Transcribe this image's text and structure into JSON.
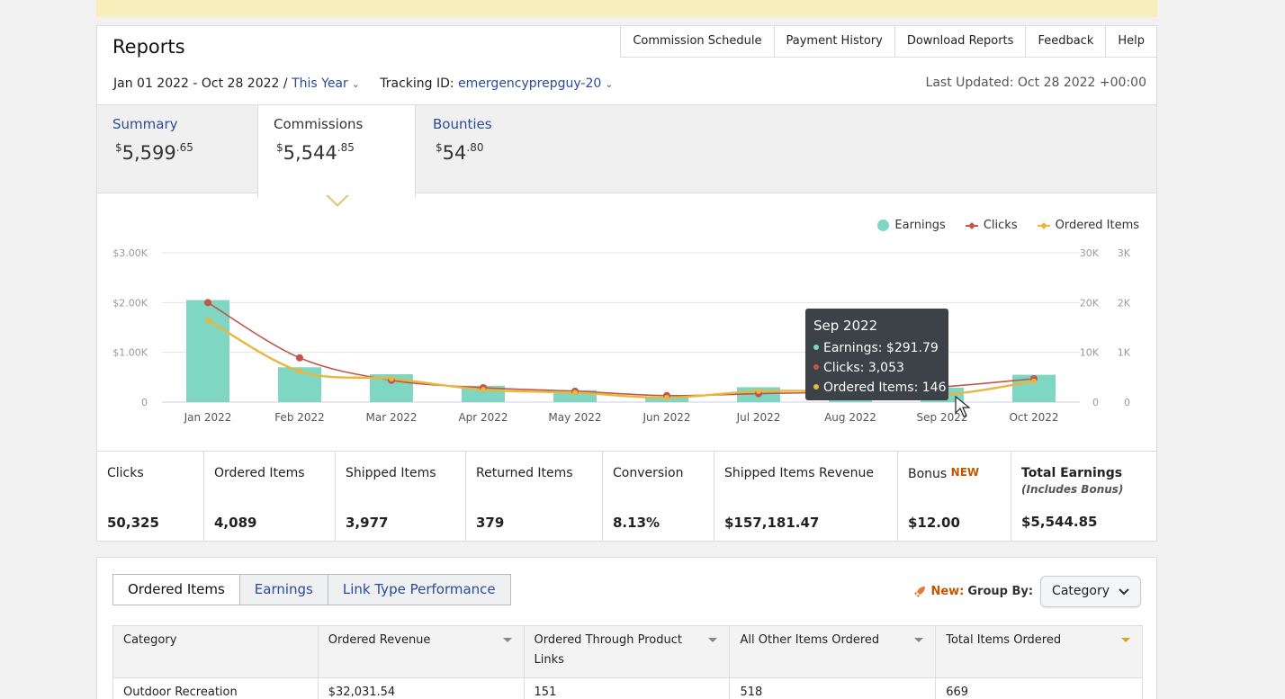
{
  "header": {
    "title": "Reports",
    "nav": [
      "Commission Schedule",
      "Payment History",
      "Download Reports",
      "Feedback",
      "Help"
    ],
    "date_range": "Jan 01 2022 - Oct 28 2022",
    "date_sep": "/",
    "period": "This Year",
    "tracking_label": "Tracking ID:",
    "tracking_id": "emergencyprepguy-20",
    "last_updated": "Last Updated: Oct 28 2022 +00:00"
  },
  "tabs": [
    {
      "label": "Summary",
      "dollar": "$",
      "whole": "5,599",
      "cents": ".65"
    },
    {
      "label": "Commissions",
      "dollar": "$",
      "whole": "5,544",
      "cents": ".85"
    },
    {
      "label": "Bounties",
      "dollar": "$",
      "whole": "54",
      "cents": ".80"
    }
  ],
  "legend": {
    "earnings": "Earnings",
    "clicks": "Clicks",
    "ordered": "Ordered Items"
  },
  "colors": {
    "earnings": "#7fd6c2",
    "clicks": "#c0574a",
    "ordered": "#e8b73e",
    "link": "#2b4a9a",
    "accent": "#c45500"
  },
  "chart_data": {
    "type": "bar",
    "categories": [
      "Jan 2022",
      "Feb 2022",
      "Mar 2022",
      "Apr 2022",
      "May 2022",
      "Jun 2022",
      "Jul 2022",
      "Aug 2022",
      "Sep 2022",
      "Oct 2022"
    ],
    "left_axis_ticks": [
      "$3.00K",
      "$2.00K",
      "$1.00K",
      "0"
    ],
    "right_axis1_ticks": [
      "30K",
      "20K",
      "10K",
      "0"
    ],
    "right_axis2_ticks": [
      "3K",
      "2K",
      "1K",
      "0"
    ],
    "ylim_earnings": [
      0,
      3000
    ],
    "ylim_clicks": [
      0,
      30000
    ],
    "ylim_ordered": [
      0,
      3000
    ],
    "series": [
      {
        "name": "Earnings",
        "values": [
          2050,
          700,
          560,
          330,
          240,
          100,
          300,
          100,
          291.79,
          550
        ]
      },
      {
        "name": "Clicks",
        "values": [
          20000,
          8900,
          4400,
          2900,
          2200,
          1300,
          1700,
          2100,
          3053,
          4700
        ]
      },
      {
        "name": "Ordered Items",
        "values": [
          1650,
          620,
          470,
          250,
          190,
          90,
          220,
          210,
          146,
          420
        ]
      }
    ],
    "grid": true,
    "legend": "top-right"
  },
  "tooltip": {
    "title": "Sep 2022",
    "earnings": "Earnings: $291.79",
    "clicks": "Clicks: 3,053",
    "ordered": "Ordered Items: 146"
  },
  "metrics": [
    {
      "label": "Clicks",
      "value": "50,325"
    },
    {
      "label": "Ordered Items",
      "value": "4,089"
    },
    {
      "label": "Shipped Items",
      "value": "3,977"
    },
    {
      "label": "Returned Items",
      "value": "379"
    },
    {
      "label": "Conversion",
      "value": "8.13%"
    },
    {
      "label": "Shipped Items Revenue",
      "value": "$157,181.47"
    },
    {
      "label": "Bonus",
      "badge": "NEW",
      "value": "$12.00"
    },
    {
      "label": "Total Earnings",
      "sub": "(Includes Bonus)",
      "value": "$5,544.85"
    }
  ],
  "bottom": {
    "tabs": [
      "Ordered Items",
      "Earnings",
      "Link Type Performance"
    ],
    "new_label": "New:",
    "group_by_label": "Group By:",
    "group_by_value": "Category",
    "columns": [
      "Category",
      "Ordered Revenue",
      "Ordered Through Product Links",
      "All Other Items Ordered",
      "Total Items Ordered"
    ],
    "rows": [
      [
        "Outdoor Recreation",
        "$32,031.54",
        "151",
        "518",
        "669"
      ]
    ]
  }
}
